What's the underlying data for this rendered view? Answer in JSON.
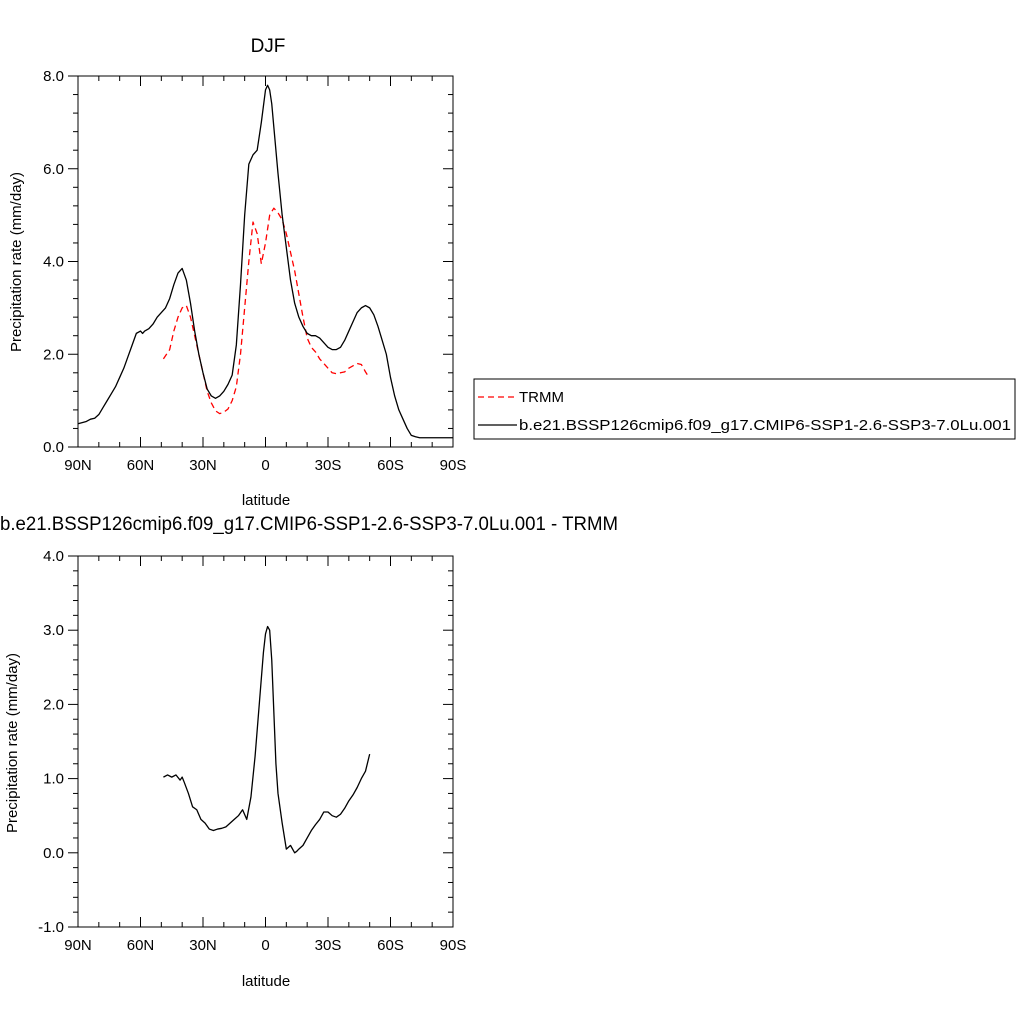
{
  "chart_data": [
    {
      "type": "line",
      "title": "DJF",
      "xlabel": "latitude",
      "ylabel": "Precipitation rate (mm/day)",
      "xlim": [
        -90,
        90
      ],
      "ylim": [
        0,
        8
      ],
      "x_ticks": [
        -90,
        -60,
        -30,
        0,
        30,
        60,
        90
      ],
      "x_tick_labels": [
        "90N",
        "60N",
        "30N",
        "0",
        "30S",
        "60S",
        "90S"
      ],
      "y_ticks": [
        0,
        2,
        4,
        6,
        8
      ],
      "y_tick_labels": [
        "0.0",
        "2.0",
        "4.0",
        "6.0",
        "8.0"
      ],
      "legend_placement": "right",
      "series": [
        {
          "name": "TRMM",
          "color": "#ff0000",
          "dash": true,
          "x": [
            -49,
            -46,
            -44,
            -42,
            -40,
            -38,
            -36,
            -34,
            -32,
            -30,
            -28,
            -26,
            -24,
            -22,
            -20,
            -18,
            -16,
            -14,
            -12,
            -10,
            -8,
            -6,
            -4,
            -2,
            0,
            2,
            4,
            6,
            8,
            10,
            12,
            14,
            16,
            18,
            20,
            22,
            24,
            26,
            28,
            30,
            32,
            34,
            36,
            38,
            40,
            42,
            44,
            46,
            48,
            49
          ],
          "values": [
            1.9,
            2.1,
            2.5,
            2.8,
            3.0,
            3.05,
            2.8,
            2.4,
            2.0,
            1.6,
            1.2,
            0.95,
            0.78,
            0.72,
            0.75,
            0.82,
            1.0,
            1.3,
            2.0,
            3.0,
            4.0,
            4.85,
            4.6,
            3.95,
            4.4,
            5.0,
            5.15,
            5.05,
            4.9,
            4.6,
            4.2,
            3.8,
            3.3,
            2.8,
            2.35,
            2.15,
            2.05,
            1.9,
            1.8,
            1.7,
            1.6,
            1.58,
            1.6,
            1.62,
            1.7,
            1.75,
            1.8,
            1.78,
            1.62,
            1.55
          ]
        },
        {
          "name": "b.e21.BSSP126cmip6.f09_g17.CMIP6-SSP1-2.6-SSP3-7.0Lu.001",
          "color": "#000000",
          "dash": false,
          "x": [
            -90,
            -86,
            -84,
            -82,
            -80,
            -78,
            -76,
            -74,
            -72,
            -70,
            -68,
            -66,
            -64,
            -62,
            -60,
            -59,
            -58,
            -56,
            -54,
            -52,
            -50,
            -48,
            -46,
            -44,
            -42,
            -40,
            -38,
            -36,
            -34,
            -32,
            -30,
            -28,
            -26,
            -24,
            -22,
            -20,
            -18,
            -16,
            -14,
            -12,
            -10,
            -8,
            -6,
            -4,
            -2,
            0,
            1,
            2,
            3,
            4,
            6,
            8,
            10,
            12,
            14,
            16,
            18,
            20,
            22,
            24,
            26,
            28,
            30,
            32,
            34,
            36,
            38,
            40,
            42,
            44,
            46,
            48,
            50,
            52,
            54,
            56,
            58,
            60,
            62,
            64,
            66,
            68,
            70,
            72,
            74,
            76,
            78,
            80,
            82,
            84,
            86,
            88,
            90
          ],
          "values": [
            0.5,
            0.55,
            0.6,
            0.62,
            0.7,
            0.85,
            1.0,
            1.15,
            1.3,
            1.5,
            1.7,
            1.95,
            2.2,
            2.45,
            2.5,
            2.45,
            2.5,
            2.55,
            2.65,
            2.8,
            2.9,
            3.0,
            3.2,
            3.5,
            3.75,
            3.85,
            3.6,
            3.1,
            2.5,
            2.0,
            1.6,
            1.25,
            1.1,
            1.05,
            1.1,
            1.2,
            1.35,
            1.55,
            2.2,
            3.5,
            5.0,
            6.1,
            6.3,
            6.4,
            7.0,
            7.7,
            7.8,
            7.7,
            7.4,
            6.9,
            5.9,
            5.0,
            4.3,
            3.6,
            3.1,
            2.8,
            2.6,
            2.45,
            2.4,
            2.4,
            2.35,
            2.25,
            2.15,
            2.1,
            2.1,
            2.15,
            2.3,
            2.5,
            2.7,
            2.9,
            3.0,
            3.05,
            3.0,
            2.85,
            2.6,
            2.3,
            2.0,
            1.5,
            1.1,
            0.8,
            0.6,
            0.4,
            0.25,
            0.22,
            0.2,
            0.2,
            0.2,
            0.2,
            0.2,
            0.2,
            0.2,
            0.2,
            0.2
          ]
        }
      ]
    },
    {
      "type": "line",
      "title": "b.e21.BSSP126cmip6.f09_g17.CMIP6-SSP1-2.6-SSP3-7.0Lu.001 - TRMM",
      "xlabel": "latitude",
      "ylabel": "Precipitation rate (mm/day)",
      "xlim": [
        -90,
        90
      ],
      "ylim": [
        -1,
        4
      ],
      "x_ticks": [
        -90,
        -60,
        -30,
        0,
        30,
        60,
        90
      ],
      "x_tick_labels": [
        "90N",
        "60N",
        "30N",
        "0",
        "30S",
        "60S",
        "90S"
      ],
      "y_ticks": [
        -1,
        0,
        1,
        2,
        3,
        4
      ],
      "y_tick_labels": [
        "-1.0",
        "0.0",
        "1.0",
        "2.0",
        "3.0",
        "4.0"
      ],
      "series": [
        {
          "name": "",
          "color": "#000000",
          "dash": false,
          "x": [
            -49,
            -47,
            -45,
            -43,
            -41,
            -40,
            -39,
            -37,
            -35,
            -33,
            -31,
            -29,
            -27,
            -25,
            -23,
            -21,
            -19,
            -17,
            -15,
            -13,
            -11,
            -9,
            -7,
            -5,
            -3,
            -1,
            0,
            1,
            2,
            3,
            4,
            5,
            6,
            8,
            10,
            12,
            14,
            15,
            16,
            18,
            20,
            22,
            24,
            26,
            28,
            30,
            32,
            34,
            36,
            38,
            40,
            42,
            44,
            46,
            48,
            50
          ],
          "values": [
            1.02,
            1.05,
            1.02,
            1.05,
            0.98,
            1.02,
            0.95,
            0.8,
            0.62,
            0.58,
            0.45,
            0.4,
            0.32,
            0.3,
            0.32,
            0.33,
            0.35,
            0.4,
            0.45,
            0.5,
            0.58,
            0.45,
            0.75,
            1.3,
            2.0,
            2.7,
            2.95,
            3.05,
            3.0,
            2.6,
            1.9,
            1.2,
            0.8,
            0.4,
            0.05,
            0.1,
            0.0,
            0.02,
            0.05,
            0.1,
            0.2,
            0.3,
            0.38,
            0.45,
            0.55,
            0.55,
            0.5,
            0.48,
            0.52,
            0.6,
            0.7,
            0.78,
            0.88,
            1.0,
            1.1,
            1.33
          ]
        }
      ]
    }
  ]
}
